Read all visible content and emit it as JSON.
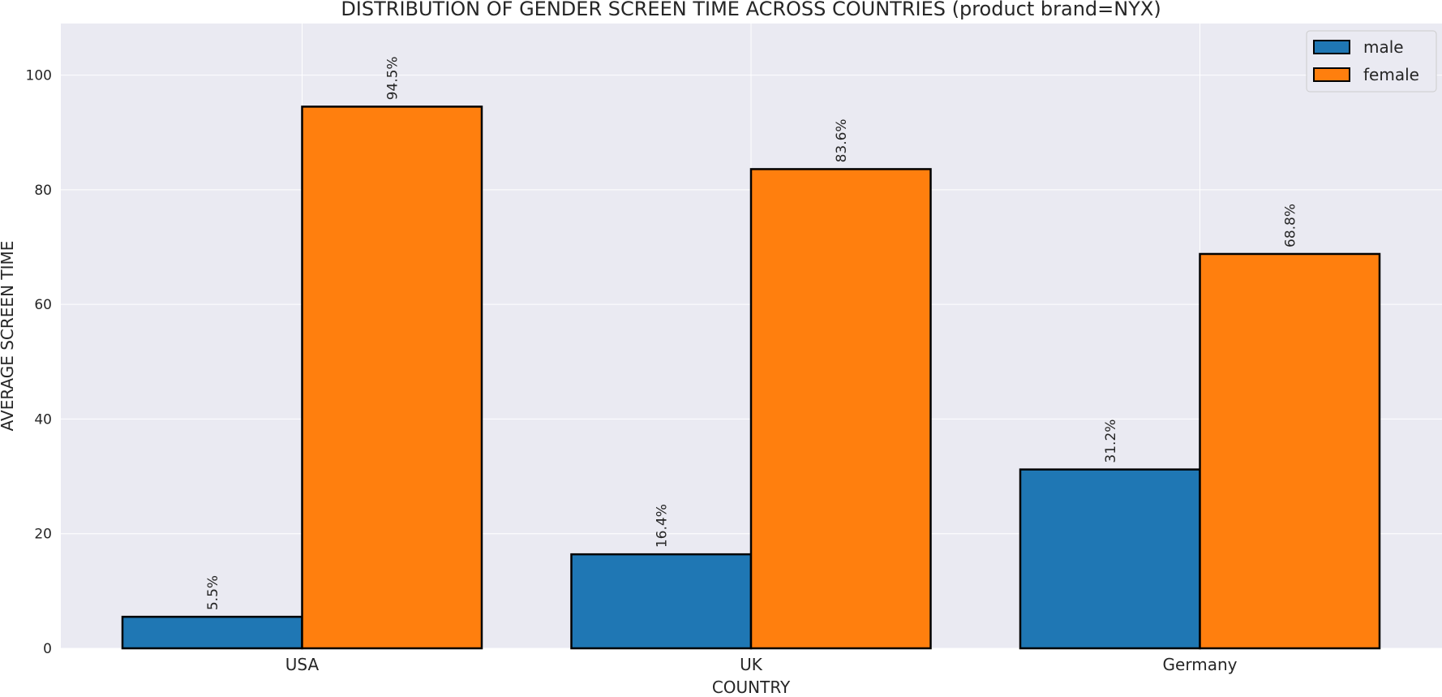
{
  "chart_data": {
    "type": "bar",
    "title": "DISTRIBUTION OF GENDER SCREEN TIME ACROSS COUNTRIES (product brand=NYX)",
    "xlabel": "COUNTRY",
    "ylabel": "AVERAGE SCREEN TIME",
    "categories": [
      "USA",
      "UK",
      "Germany"
    ],
    "series": [
      {
        "name": "male",
        "values": [
          5.5,
          16.4,
          31.2
        ],
        "labels": [
          "5.5%",
          "16.4%",
          "31.2%"
        ],
        "color": "#1f77b4"
      },
      {
        "name": "female",
        "values": [
          94.5,
          83.6,
          68.8
        ],
        "labels": [
          "94.5%",
          "83.6%",
          "68.8%"
        ],
        "color": "#ff7f0e"
      }
    ],
    "ylim": [
      0,
      109
    ],
    "yticks": [
      0,
      20,
      40,
      60,
      80,
      100
    ],
    "grid": true,
    "legend_position": "top-right",
    "background_color": "#eaeaf2",
    "bar_edge_color": "#000000"
  }
}
